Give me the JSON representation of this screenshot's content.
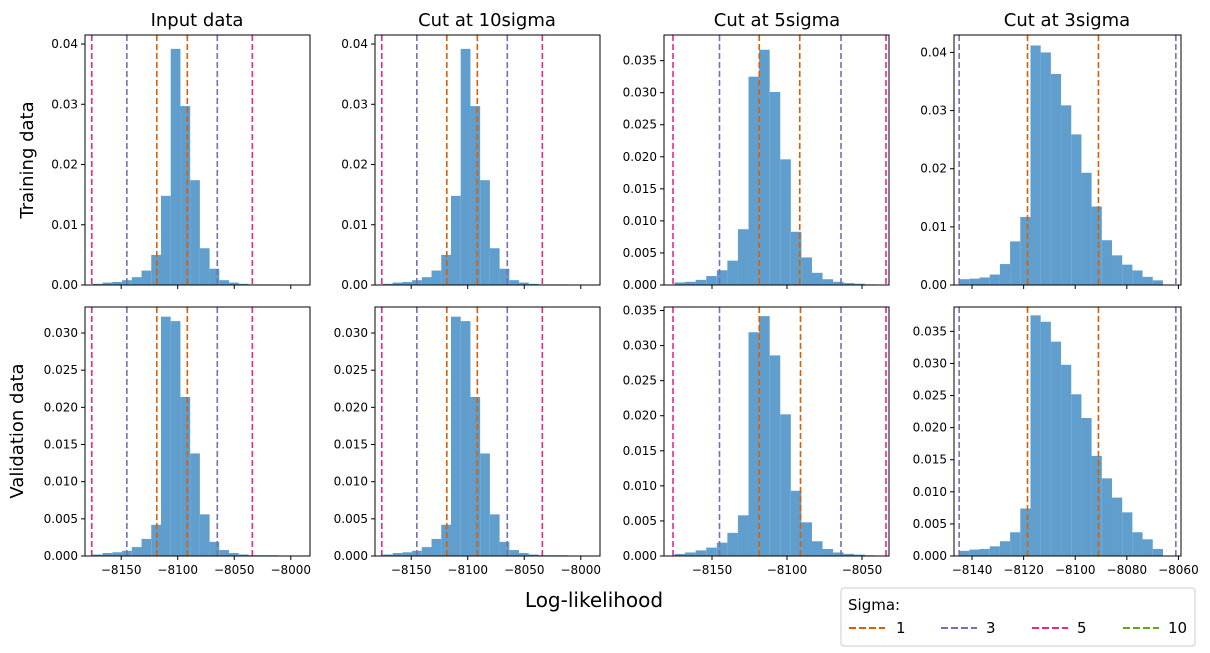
{
  "figure": {
    "xlabel": "Log-likelihood",
    "row_labels": [
      "Training data",
      "Validation data"
    ],
    "col_titles": [
      "Input data",
      "Cut at 10sigma",
      "Cut at 5sigma",
      "Cut at 3sigma"
    ],
    "bar_color": "#5f9ecd"
  },
  "legend": {
    "title": "Sigma:",
    "placement": "bottom-right",
    "entries": [
      {
        "label": "1",
        "color": "#d95f02"
      },
      {
        "label": "3",
        "color": "#7570b3"
      },
      {
        "label": "5",
        "color": "#e7298a"
      },
      {
        "label": "10",
        "color": "#66a61e"
      }
    ]
  },
  "chart_data": [
    {
      "type": "bar",
      "row": 0,
      "col": 0,
      "title": "Input data",
      "ylabel": "Training data",
      "xlim": [
        -8182,
        -7983
      ],
      "ylim": [
        0,
        0.0415
      ],
      "xticks": [
        -8150,
        -8100,
        -8050,
        -8000
      ],
      "xticklabels": [
        "",
        "",
        "",
        ""
      ],
      "yticks": [
        0,
        0.01,
        0.02,
        0.03,
        0.04
      ],
      "yticklabels": [
        "0.00",
        "0.01",
        "0.02",
        "0.03",
        "0.04"
      ],
      "bins_start": -8175,
      "bin_width": 8.6,
      "values": [
        0.0002,
        0.0004,
        0.0005,
        0.0008,
        0.0013,
        0.0024,
        0.005,
        0.0148,
        0.0392,
        0.0297,
        0.0174,
        0.0061,
        0.0027,
        0.0008,
        0.0004,
        0.0002,
        0.0001,
        0.0001,
        0.0001
      ],
      "sigma_lines": [
        {
          "sigma": "1",
          "x": [
            -8118.5,
            -8091.5
          ]
        },
        {
          "sigma": "3",
          "x": [
            -8145,
            -8065
          ]
        },
        {
          "sigma": "5",
          "x": [
            -8176,
            -8034
          ]
        }
      ]
    },
    {
      "type": "bar",
      "row": 0,
      "col": 1,
      "title": "Cut at 10sigma",
      "ylabel": "",
      "xlim": [
        -8182,
        -7983
      ],
      "ylim": [
        0,
        0.0415
      ],
      "xticks": [
        -8150,
        -8100,
        -8050,
        -8000
      ],
      "xticklabels": [
        "",
        "",
        "",
        ""
      ],
      "yticks": [
        0,
        0.01,
        0.02,
        0.03,
        0.04
      ],
      "yticklabels": [
        "0.00",
        "0.01",
        "0.02",
        "0.03",
        "0.04"
      ],
      "bins_start": -8175,
      "bin_width": 8.6,
      "values": [
        0.0002,
        0.0004,
        0.0005,
        0.0008,
        0.0013,
        0.0024,
        0.005,
        0.0148,
        0.0392,
        0.0297,
        0.0174,
        0.0061,
        0.0027,
        0.0008,
        0.0004,
        0.0002,
        0.0001,
        0.0001,
        0.0001
      ],
      "sigma_lines": [
        {
          "sigma": "1",
          "x": [
            -8118.5,
            -8091.5
          ]
        },
        {
          "sigma": "3",
          "x": [
            -8145,
            -8065
          ]
        },
        {
          "sigma": "5",
          "x": [
            -8176,
            -8034
          ]
        }
      ]
    },
    {
      "type": "bar",
      "row": 0,
      "col": 2,
      "title": "Cut at 5sigma",
      "ylabel": "",
      "xlim": [
        -8182,
        -8032
      ],
      "ylim": [
        0,
        0.039
      ],
      "xticks": [
        -8150,
        -8100,
        -8050
      ],
      "xticklabels": [
        "",
        "",
        ""
      ],
      "yticks": [
        0,
        0.005,
        0.01,
        0.015,
        0.02,
        0.025,
        0.03,
        0.035
      ],
      "yticklabels": [
        "0.000",
        "0.005",
        "0.010",
        "0.015",
        "0.020",
        "0.025",
        "0.030",
        "0.035"
      ],
      "bins_start": -8175,
      "bin_width": 7.05,
      "values": [
        0.0004,
        0.0005,
        0.0008,
        0.0014,
        0.0023,
        0.0038,
        0.0087,
        0.0325,
        0.0367,
        0.0301,
        0.0196,
        0.0083,
        0.0043,
        0.0019,
        0.0009,
        0.0005,
        0.0003,
        0.0002,
        0.0001
      ],
      "sigma_lines": [
        {
          "sigma": "1",
          "x": [
            -8118.5,
            -8091.5
          ]
        },
        {
          "sigma": "3",
          "x": [
            -8145,
            -8064
          ]
        },
        {
          "sigma": "5",
          "x": [
            -8176,
            -8034
          ]
        }
      ]
    },
    {
      "type": "bar",
      "row": 0,
      "col": 3,
      "title": "Cut at 3sigma",
      "ylabel": "",
      "xlim": [
        -8147,
        -8059
      ],
      "ylim": [
        0,
        0.043
      ],
      "xticks": [
        -8140,
        -8120,
        -8100,
        -8080,
        -8060
      ],
      "xticklabels": [
        "",
        "",
        "",
        "",
        ""
      ],
      "yticks": [
        0,
        0.01,
        0.02,
        0.03,
        0.04
      ],
      "yticklabels": [
        "0.00",
        "0.01",
        "0.02",
        "0.03",
        "0.04"
      ],
      "bins_start": -8145,
      "bin_width": 3.95,
      "values": [
        0.001,
        0.0011,
        0.0013,
        0.0018,
        0.0036,
        0.0075,
        0.0117,
        0.0412,
        0.04,
        0.0363,
        0.0309,
        0.0259,
        0.0193,
        0.0135,
        0.0077,
        0.0051,
        0.0035,
        0.0025,
        0.0014,
        0.0008
      ],
      "sigma_lines": [
        {
          "sigma": "1",
          "x": [
            -8118.5,
            -8091
          ]
        },
        {
          "sigma": "3",
          "x": [
            -8145,
            -8061
          ]
        }
      ]
    },
    {
      "type": "bar",
      "row": 1,
      "col": 0,
      "title": "",
      "ylabel": "Validation data",
      "xlim": [
        -8182,
        -7983
      ],
      "ylim": [
        0,
        0.0335
      ],
      "xticks": [
        -8150,
        -8100,
        -8050,
        -8000
      ],
      "xticklabels": [
        "−8150",
        "−8100",
        "−8050",
        "−8000"
      ],
      "yticks": [
        0,
        0.005,
        0.01,
        0.015,
        0.02,
        0.025,
        0.03
      ],
      "yticklabels": [
        "0.000",
        "0.005",
        "0.010",
        "0.015",
        "0.020",
        "0.025",
        "0.030"
      ],
      "bins_start": -8175,
      "bin_width": 8.6,
      "values": [
        0.0002,
        0.0004,
        0.0005,
        0.0007,
        0.0012,
        0.0023,
        0.0042,
        0.0322,
        0.0316,
        0.0214,
        0.0138,
        0.0056,
        0.0019,
        0.0008,
        0.0004,
        0.0002,
        0.0001,
        0.0001,
        0.0001
      ],
      "sigma_lines": [
        {
          "sigma": "1",
          "x": [
            -8118.5,
            -8091.5
          ]
        },
        {
          "sigma": "3",
          "x": [
            -8145,
            -8065
          ]
        },
        {
          "sigma": "5",
          "x": [
            -8176,
            -8034
          ]
        }
      ]
    },
    {
      "type": "bar",
      "row": 1,
      "col": 1,
      "title": "",
      "ylabel": "",
      "xlim": [
        -8182,
        -7983
      ],
      "ylim": [
        0,
        0.0335
      ],
      "xticks": [
        -8150,
        -8100,
        -8050,
        -8000
      ],
      "xticklabels": [
        "−8150",
        "−8100",
        "−8050",
        "−8000"
      ],
      "yticks": [
        0,
        0.005,
        0.01,
        0.015,
        0.02,
        0.025,
        0.03
      ],
      "yticklabels": [
        "0.000",
        "0.005",
        "0.010",
        "0.015",
        "0.020",
        "0.025",
        "0.030"
      ],
      "bins_start": -8175,
      "bin_width": 8.6,
      "values": [
        0.0002,
        0.0004,
        0.0005,
        0.0007,
        0.0012,
        0.0023,
        0.0042,
        0.0322,
        0.0316,
        0.0214,
        0.0138,
        0.0056,
        0.0019,
        0.0008,
        0.0004,
        0.0002,
        0.0001,
        0.0001,
        0.0001
      ],
      "sigma_lines": [
        {
          "sigma": "1",
          "x": [
            -8118.5,
            -8091.5
          ]
        },
        {
          "sigma": "3",
          "x": [
            -8145,
            -8065
          ]
        },
        {
          "sigma": "5",
          "x": [
            -8176,
            -8034
          ]
        }
      ]
    },
    {
      "type": "bar",
      "row": 1,
      "col": 2,
      "title": "",
      "ylabel": "",
      "xlim": [
        -8182,
        -8032
      ],
      "ylim": [
        0,
        0.0355
      ],
      "xticks": [
        -8150,
        -8100,
        -8050
      ],
      "xticklabels": [
        "−8150",
        "−8100",
        "−8050"
      ],
      "yticks": [
        0,
        0.005,
        0.01,
        0.015,
        0.02,
        0.025,
        0.03,
        0.035
      ],
      "yticklabels": [
        "0.000",
        "0.005",
        "0.010",
        "0.015",
        "0.020",
        "0.025",
        "0.030",
        "0.035"
      ],
      "bins_start": -8175,
      "bin_width": 7.05,
      "values": [
        0.0003,
        0.0005,
        0.0008,
        0.0012,
        0.0019,
        0.0033,
        0.0058,
        0.0319,
        0.0342,
        0.0286,
        0.0202,
        0.0093,
        0.0048,
        0.0021,
        0.001,
        0.0005,
        0.0003,
        0.0002,
        0.0001
      ],
      "sigma_lines": [
        {
          "sigma": "1",
          "x": [
            -8118.5,
            -8091
          ]
        },
        {
          "sigma": "3",
          "x": [
            -8145,
            -8064
          ]
        },
        {
          "sigma": "5",
          "x": [
            -8176,
            -8034
          ]
        }
      ]
    },
    {
      "type": "bar",
      "row": 1,
      "col": 3,
      "title": "",
      "ylabel": "",
      "xlim": [
        -8147,
        -8059
      ],
      "ylim": [
        0,
        0.0388
      ],
      "xticks": [
        -8140,
        -8120,
        -8100,
        -8080,
        -8060
      ],
      "xticklabels": [
        "−8140",
        "−8120",
        "−8100",
        "−8080",
        "−8060"
      ],
      "yticks": [
        0,
        0.005,
        0.01,
        0.015,
        0.02,
        0.025,
        0.03,
        0.035
      ],
      "yticklabels": [
        "0.000",
        "0.005",
        "0.010",
        "0.015",
        "0.020",
        "0.025",
        "0.030",
        "0.035"
      ],
      "bins_start": -8145,
      "bin_width": 3.95,
      "values": [
        0.0008,
        0.001,
        0.0011,
        0.0015,
        0.0023,
        0.0037,
        0.0074,
        0.0375,
        0.0365,
        0.0334,
        0.0298,
        0.0252,
        0.0215,
        0.0156,
        0.0121,
        0.0091,
        0.0068,
        0.0037,
        0.0026,
        0.0011
      ],
      "sigma_lines": [
        {
          "sigma": "1",
          "x": [
            -8118.5,
            -8091
          ]
        },
        {
          "sigma": "3",
          "x": [
            -8145,
            -8061
          ]
        }
      ]
    }
  ]
}
